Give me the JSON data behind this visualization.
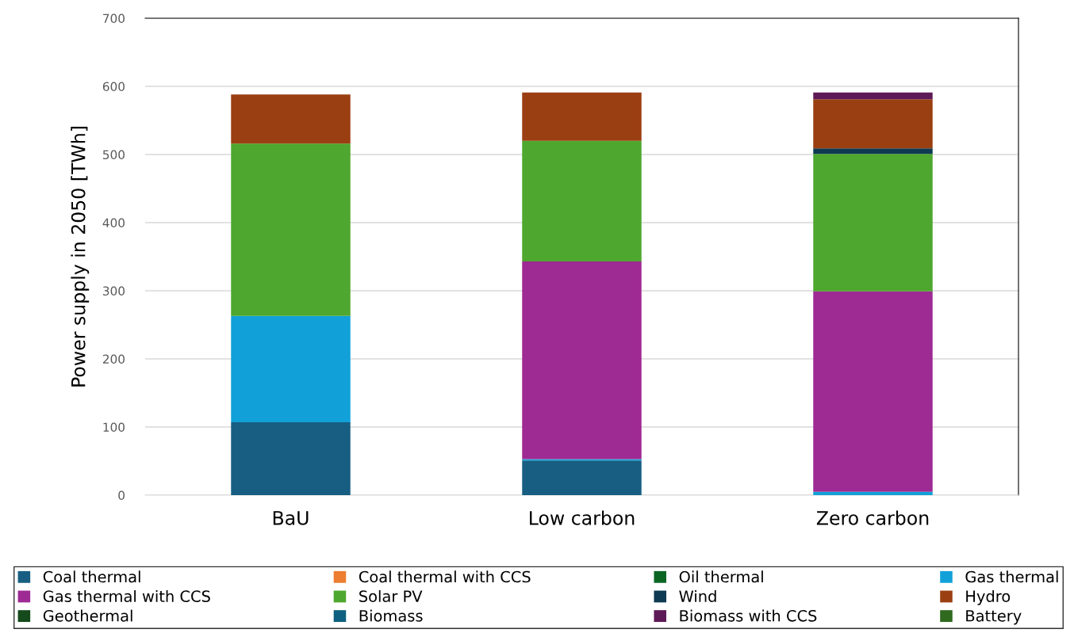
{
  "chart_data": {
    "type": "bar",
    "stacked": true,
    "ylabel": "Power supply in 2050 [TWh]",
    "categories": [
      "BaU",
      "Low carbon",
      "Zero carbon"
    ],
    "series": [
      {
        "name": "Coal thermal",
        "color": "#175e82",
        "values": [
          107,
          51,
          0
        ]
      },
      {
        "name": "Coal thermal with CCS",
        "color": "#ed7d31",
        "values": [
          0,
          0,
          0
        ]
      },
      {
        "name": "Oil thermal",
        "color": "#0b6623",
        "values": [
          0,
          0,
          0
        ]
      },
      {
        "name": "Gas thermal",
        "color": "#11a0d8",
        "values": [
          156,
          2,
          5
        ]
      },
      {
        "name": "Gas thermal with CCS",
        "color": "#9e2a93",
        "values": [
          0,
          290,
          294
        ]
      },
      {
        "name": "Solar PV",
        "color": "#4ea72e",
        "values": [
          253,
          177,
          202
        ]
      },
      {
        "name": "Wind",
        "color": "#0e3a52",
        "values": [
          0,
          0,
          8
        ]
      },
      {
        "name": "Hydro",
        "color": "#9a3f11",
        "values": [
          72,
          71,
          72
        ]
      },
      {
        "name": "Geothermal",
        "color": "#154a1c",
        "values": [
          0,
          0,
          0
        ]
      },
      {
        "name": "Biomass",
        "color": "#0f6080",
        "values": [
          0,
          0,
          0
        ]
      },
      {
        "name": "Biomass with CCS",
        "color": "#5e1a57",
        "values": [
          0,
          0,
          10
        ]
      },
      {
        "name": "Battery",
        "color": "#2f6a1f",
        "values": [
          0,
          0,
          0
        ]
      }
    ],
    "ylim": [
      0,
      700
    ],
    "yticks": [
      0,
      100,
      200,
      300,
      400,
      500,
      600,
      700
    ],
    "grid": "y",
    "legend": "bottom"
  }
}
